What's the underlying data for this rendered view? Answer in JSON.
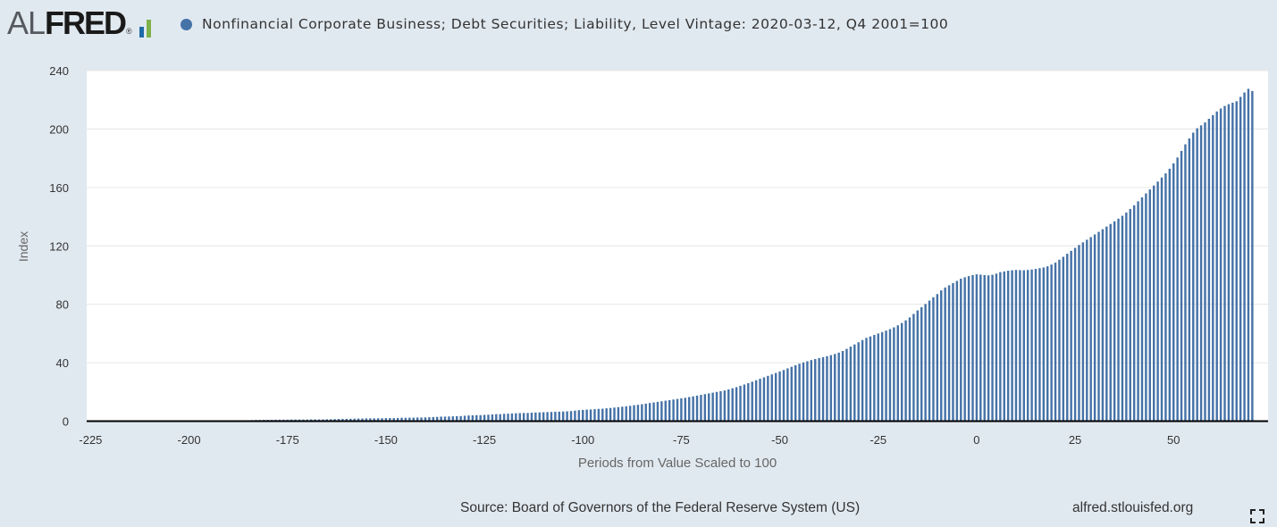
{
  "header": {
    "logo_al": "AL",
    "logo_fred": "FRED",
    "logo_registered": "®",
    "logo_bar_colors": [
      "#1f6aa6",
      "#7fb14a",
      "#1f6aa6"
    ]
  },
  "footer": {
    "source": "Source: Board of Governors of the Federal Reserve System (US)",
    "link": "alfred.stlouisfed.org"
  },
  "colors": {
    "series": "#4572a7",
    "background": "#e1e9f0",
    "plot_bg": "#ffffff",
    "grid": "#e6e6e6"
  },
  "chart_data": {
    "type": "bar",
    "title": "",
    "legend": [
      "Nonfinancial Corporate Business; Debt Securities; Liability, Level Vintage: 2020-03-12, Q4 2001=100"
    ],
    "legend_position": "top-left",
    "xlabel": "Periods from Value Scaled to 100",
    "ylabel": "Index",
    "xlim": [
      -226,
      74
    ],
    "ylim": [
      0,
      240
    ],
    "xticks": [
      -225,
      -200,
      -175,
      -150,
      -125,
      -100,
      -75,
      -50,
      -25,
      0,
      25,
      50
    ],
    "yticks": [
      0,
      40,
      80,
      120,
      160,
      200,
      240
    ],
    "grid": true,
    "x_start": -225,
    "x_step": 1,
    "series": [
      {
        "name": "Nonfinancial Corporate Business; Debt Securities; Liability, Level Vintage: 2020-03-12, Q4 2001=100",
        "values": [
          0.5,
          0.5,
          0.5,
          0.5,
          0.5,
          0.5,
          0.5,
          0.5,
          0.5,
          0.5,
          0.5,
          0.5,
          0.5,
          0.5,
          0.5,
          0.5,
          0.5,
          0.5,
          0.5,
          0.5,
          0.5,
          0.5,
          0.5,
          0.5,
          0.5,
          0.5,
          0.5,
          0.5,
          0.5,
          0.5,
          0.5,
          0.5,
          0.5,
          0.5,
          0.5,
          0.5,
          0.5,
          0.5,
          0.5,
          0.5,
          0.5,
          0.7,
          0.8,
          0.8,
          0.9,
          0.9,
          0.9,
          1.0,
          1.0,
          1.0,
          1.0,
          1.1,
          1.1,
          1.1,
          1.1,
          1.1,
          1.2,
          1.2,
          1.2,
          1.2,
          1.3,
          1.3,
          1.4,
          1.5,
          1.5,
          1.6,
          1.6,
          1.7,
          1.8,
          1.8,
          1.9,
          1.9,
          1.9,
          2.0,
          2.0,
          2.1,
          2.1,
          2.1,
          2.2,
          2.3,
          2.3,
          2.4,
          2.4,
          2.5,
          2.5,
          2.6,
          2.7,
          2.8,
          2.9,
          3.1,
          3.1,
          3.2,
          3.3,
          3.4,
          3.5,
          3.7,
          3.9,
          4.0,
          4.1,
          4.1,
          4.3,
          4.4,
          4.6,
          4.8,
          4.8,
          5.0,
          5.1,
          5.3,
          5.4,
          5.5,
          5.6,
          5.6,
          5.8,
          5.9,
          6.0,
          6.1,
          6.2,
          6.3,
          6.4,
          6.5,
          6.6,
          6.7,
          6.9,
          7.2,
          7.5,
          7.7,
          7.9,
          8.0,
          8.2,
          8.4,
          8.5,
          8.8,
          9.0,
          9.3,
          9.6,
          9.9,
          10.2,
          10.5,
          10.9,
          11.2,
          11.6,
          12.0,
          12.4,
          12.8,
          13.2,
          13.6,
          14.0,
          14.4,
          14.8,
          15.2,
          15.6,
          16.0,
          16.5,
          17.0,
          17.5,
          18.0,
          18.5,
          19.0,
          19.5,
          20.0,
          20.5,
          21.0,
          21.7,
          22.5,
          23.3,
          24.2,
          25.1,
          26.0,
          27.0,
          28.0,
          29.0,
          30.0,
          31.0,
          32.0,
          33.0,
          34.0,
          35.0,
          36.1,
          37.2,
          38.3,
          39.3,
          40.2,
          41.0,
          41.8,
          42.5,
          43.2,
          43.8,
          44.5,
          45.2,
          46.0,
          46.9,
          48.0,
          49.5,
          51.0,
          52.5,
          54.0,
          55.5,
          57.0,
          58.0,
          59.0,
          60.0,
          61.0,
          62.0,
          63.0,
          64.2,
          65.6,
          67.2,
          69.0,
          71.0,
          73.4,
          75.8,
          78.0,
          80.2,
          82.5,
          84.8,
          87.0,
          89.5,
          91.5,
          93.0,
          94.5,
          96.0,
          97.5,
          98.5,
          99.3,
          100,
          100.5,
          100.3,
          100,
          99.8,
          100.2,
          101,
          102,
          102.5,
          103,
          103.3,
          103.5,
          103.4,
          103.3,
          103.5,
          103.8,
          104.2,
          104.7,
          105.2,
          106,
          107.2,
          108.5,
          110.5,
          112.5,
          114.6,
          116.6,
          118.6,
          120.6,
          122.4,
          124.2,
          126.0,
          127.8,
          129.6,
          131.4,
          133.2,
          135.0,
          136.8,
          138.6,
          140.6,
          142.8,
          145.2,
          147.8,
          150.5,
          153.2,
          155.9,
          158.6,
          161.3,
          164.0,
          166.8,
          169.6,
          172.8,
          176.5,
          180.5,
          185.0,
          189.5,
          193.5,
          197.5,
          200.5,
          202.5,
          204.5,
          207.0,
          209.5,
          212.0,
          214.0,
          215.8,
          217.0,
          218.0,
          219.0,
          222.0,
          225.0,
          227.5,
          226.0
        ]
      }
    ]
  }
}
